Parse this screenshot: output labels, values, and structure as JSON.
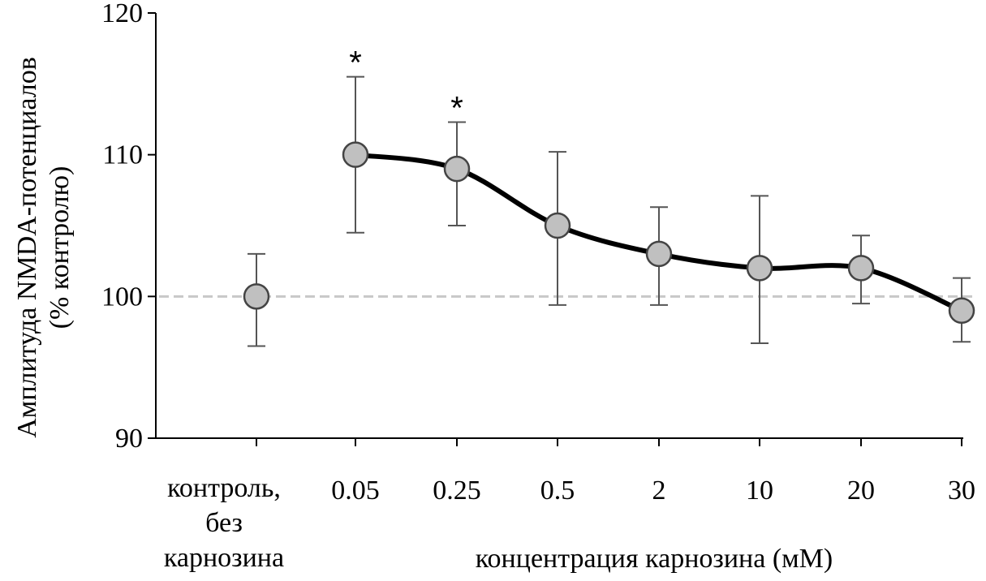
{
  "chart_data": {
    "type": "line",
    "categories": [
      "контроль, без карнозина",
      "0.05",
      "0.25",
      "0.5",
      "2",
      "10",
      "20",
      "30"
    ],
    "control_label_lines": [
      "контроль,",
      "без",
      "карнозина"
    ],
    "values": [
      100,
      110,
      109,
      105,
      103,
      102,
      102,
      99
    ],
    "error_upper": [
      103,
      115.5,
      112.3,
      110.2,
      106.3,
      107.1,
      104.3,
      101.3
    ],
    "error_lower": [
      96.5,
      104.5,
      105,
      99.4,
      99.4,
      96.7,
      99.5,
      96.8
    ],
    "significant": [
      false,
      true,
      true,
      false,
      false,
      false,
      false,
      false
    ],
    "significance_marker": "*",
    "connected_from_index": 1,
    "reference_line": 100,
    "ylim": [
      90,
      120
    ],
    "yticks": [
      90,
      100,
      110,
      120
    ],
    "ylabel": "Амплитуда NMDA-потенциалов",
    "ylabel_line2": "(% контролю)",
    "xlabel": "концентрация карнозина (мМ)",
    "grid": false,
    "colors": {
      "line": "#000000",
      "marker_fill": "#c0c0c0",
      "marker_edge": "#444444",
      "error_bar": "#555555",
      "reference_line": "#c8c8c8"
    }
  }
}
